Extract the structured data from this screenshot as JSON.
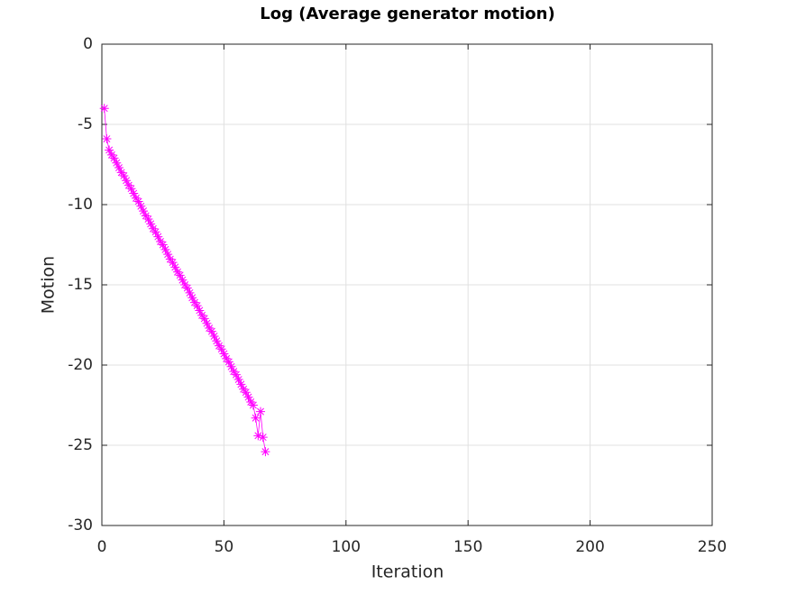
{
  "chart_data": {
    "type": "line",
    "title": "Log (Average generator motion)",
    "x_label": "Iteration",
    "y_label": "Motion",
    "x": [
      1,
      2,
      3,
      4,
      5,
      6,
      7,
      8,
      9,
      10,
      11,
      12,
      13,
      14,
      15,
      16,
      17,
      18,
      19,
      20,
      21,
      22,
      23,
      24,
      25,
      26,
      27,
      28,
      29,
      30,
      31,
      32,
      33,
      34,
      35,
      36,
      37,
      38,
      39,
      40,
      41,
      42,
      43,
      44,
      45,
      46,
      47,
      48,
      49,
      50,
      51,
      52,
      53,
      54,
      55,
      56,
      57,
      58,
      59,
      60,
      61,
      62,
      63,
      64,
      65,
      66,
      67
    ],
    "series": [
      {
        "color": "#ff00ff",
        "marker": "asterisk",
        "values": [
          -4.0,
          -5.9,
          -6.6,
          -6.9,
          -7.1,
          -7.4,
          -7.7,
          -8.0,
          -8.2,
          -8.5,
          -8.8,
          -9.0,
          -9.3,
          -9.6,
          -9.8,
          -10.1,
          -10.4,
          -10.7,
          -10.9,
          -11.2,
          -11.5,
          -11.7,
          -12.0,
          -12.3,
          -12.5,
          -12.8,
          -13.1,
          -13.4,
          -13.6,
          -13.9,
          -14.2,
          -14.4,
          -14.7,
          -15.0,
          -15.2,
          -15.5,
          -15.8,
          -16.1,
          -16.3,
          -16.6,
          -16.9,
          -17.1,
          -17.4,
          -17.7,
          -17.9,
          -18.2,
          -18.5,
          -18.8,
          -19.0,
          -19.3,
          -19.6,
          -19.8,
          -20.1,
          -20.4,
          -20.6,
          -20.9,
          -21.2,
          -21.5,
          -21.7,
          -22.0,
          -22.3,
          -22.5,
          -23.3,
          -24.4,
          -22.9,
          -24.5,
          -25.4
        ]
      }
    ],
    "xlim": [
      0,
      250
    ],
    "xticks": [
      0,
      50,
      100,
      150,
      200,
      250
    ],
    "ylim": [
      -30,
      0
    ],
    "yticks": [
      0,
      -5,
      -10,
      -15,
      -20,
      -25,
      -30
    ],
    "grid": true
  }
}
